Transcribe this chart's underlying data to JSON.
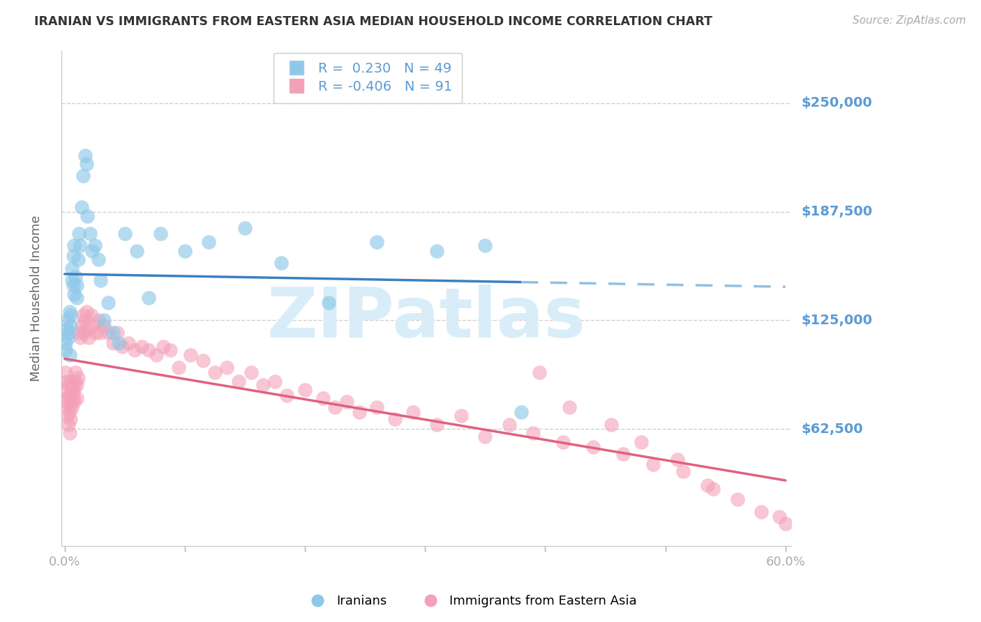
{
  "title": "IRANIAN VS IMMIGRANTS FROM EASTERN ASIA MEDIAN HOUSEHOLD INCOME CORRELATION CHART",
  "source": "Source: ZipAtlas.com",
  "ylabel": "Median Household Income",
  "xlim": [
    -0.003,
    0.605
  ],
  "ylim": [
    -5000,
    280000
  ],
  "yticks": [
    62500,
    125000,
    187500,
    250000
  ],
  "ytick_labels": [
    "$62,500",
    "$125,000",
    "$187,500",
    "$250,000"
  ],
  "xticks": [
    0.0,
    0.1,
    0.2,
    0.3,
    0.4,
    0.5,
    0.6
  ],
  "blue_color": "#8ec8e8",
  "blue_line_color": "#3a7fc1",
  "blue_dash_color": "#90c0e0",
  "pink_color": "#f4a0b8",
  "pink_line_color": "#e06080",
  "grid_color": "#d0d0d0",
  "tick_label_color": "#5b9bd5",
  "title_color": "#333333",
  "watermark_text": "ZIPatlas",
  "watermark_color": "#d8edf8",
  "R_iranian": 0.23,
  "N_iranian": 49,
  "R_eastern": -0.406,
  "N_eastern": 91,
  "iranians_x": [
    0.001,
    0.001,
    0.002,
    0.002,
    0.003,
    0.003,
    0.004,
    0.004,
    0.005,
    0.005,
    0.006,
    0.006,
    0.007,
    0.007,
    0.008,
    0.008,
    0.009,
    0.01,
    0.01,
    0.011,
    0.012,
    0.013,
    0.014,
    0.015,
    0.017,
    0.018,
    0.019,
    0.021,
    0.023,
    0.025,
    0.028,
    0.03,
    0.033,
    0.036,
    0.04,
    0.045,
    0.05,
    0.06,
    0.07,
    0.08,
    0.1,
    0.12,
    0.15,
    0.18,
    0.22,
    0.26,
    0.31,
    0.35,
    0.38
  ],
  "iranians_y": [
    112000,
    108000,
    125000,
    120000,
    118000,
    115000,
    130000,
    105000,
    128000,
    122000,
    155000,
    148000,
    162000,
    145000,
    168000,
    140000,
    150000,
    145000,
    138000,
    160000,
    175000,
    168000,
    190000,
    208000,
    220000,
    215000,
    185000,
    175000,
    165000,
    168000,
    160000,
    148000,
    125000,
    135000,
    118000,
    112000,
    175000,
    165000,
    138000,
    175000,
    165000,
    170000,
    178000,
    158000,
    135000,
    170000,
    165000,
    168000,
    72000
  ],
  "eastern_x": [
    0.001,
    0.001,
    0.001,
    0.002,
    0.002,
    0.002,
    0.003,
    0.003,
    0.003,
    0.004,
    0.004,
    0.004,
    0.005,
    0.005,
    0.005,
    0.006,
    0.006,
    0.007,
    0.007,
    0.008,
    0.008,
    0.009,
    0.009,
    0.01,
    0.01,
    0.011,
    0.012,
    0.013,
    0.014,
    0.015,
    0.016,
    0.017,
    0.018,
    0.019,
    0.02,
    0.022,
    0.024,
    0.026,
    0.028,
    0.03,
    0.033,
    0.036,
    0.04,
    0.044,
    0.048,
    0.053,
    0.058,
    0.064,
    0.07,
    0.076,
    0.082,
    0.088,
    0.095,
    0.105,
    0.115,
    0.125,
    0.135,
    0.145,
    0.155,
    0.165,
    0.175,
    0.185,
    0.2,
    0.215,
    0.225,
    0.235,
    0.245,
    0.26,
    0.275,
    0.29,
    0.31,
    0.33,
    0.35,
    0.37,
    0.39,
    0.415,
    0.44,
    0.465,
    0.49,
    0.515,
    0.54,
    0.56,
    0.58,
    0.595,
    0.6,
    0.395,
    0.42,
    0.455,
    0.48,
    0.51,
    0.535
  ],
  "eastern_y": [
    95000,
    85000,
    78000,
    90000,
    80000,
    70000,
    88000,
    75000,
    65000,
    82000,
    72000,
    60000,
    90000,
    78000,
    68000,
    85000,
    75000,
    88000,
    80000,
    85000,
    78000,
    90000,
    95000,
    88000,
    80000,
    92000,
    118000,
    115000,
    122000,
    128000,
    118000,
    125000,
    130000,
    120000,
    115000,
    128000,
    122000,
    118000,
    125000,
    118000,
    122000,
    118000,
    112000,
    118000,
    110000,
    112000,
    108000,
    110000,
    108000,
    105000,
    110000,
    108000,
    98000,
    105000,
    102000,
    95000,
    98000,
    90000,
    95000,
    88000,
    90000,
    82000,
    85000,
    80000,
    75000,
    78000,
    72000,
    75000,
    68000,
    72000,
    65000,
    70000,
    58000,
    65000,
    60000,
    55000,
    52000,
    48000,
    42000,
    38000,
    28000,
    22000,
    15000,
    12000,
    8000,
    95000,
    75000,
    65000,
    55000,
    45000,
    30000
  ]
}
